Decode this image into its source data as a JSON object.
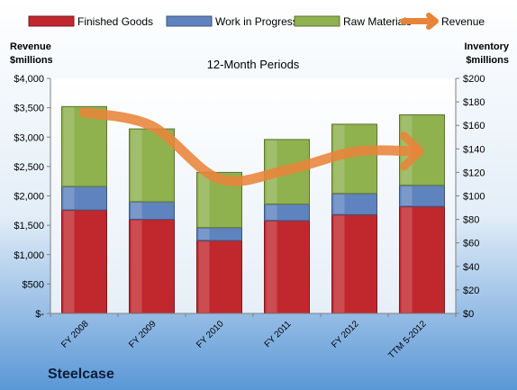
{
  "chart_data": {
    "type": "bar",
    "subtitle": "12-Month Periods",
    "company": "Steelcase",
    "ylabel_left": [
      "Revenue",
      "$millions"
    ],
    "ylabel_right": [
      "Inventory",
      "$millions"
    ],
    "categories": [
      "FY 2008",
      "FY 2009",
      "FY 2010",
      "FY 2011",
      "FY 2012",
      "TTM 5-2012"
    ],
    "left_axis": {
      "ylim": [
        0,
        4000
      ],
      "ticks": [
        0,
        500,
        1000,
        1500,
        2000,
        2500,
        3000,
        3500,
        4000
      ],
      "tick_labels": [
        "$-",
        "$500",
        "$1,000",
        "$1,500",
        "$2,000",
        "$2,500",
        "$3,000",
        "$3,500",
        "$4,000"
      ]
    },
    "right_axis": {
      "ylim": [
        0,
        200
      ],
      "ticks": [
        0,
        20,
        40,
        60,
        80,
        100,
        120,
        140,
        160,
        180,
        200
      ],
      "tick_labels": [
        "$0",
        "$20",
        "$40",
        "$60",
        "$80",
        "$100",
        "$120",
        "$140",
        "$160",
        "$180",
        "$200"
      ]
    },
    "stacked_series": [
      {
        "name": "Finished Goods",
        "axis": "right",
        "color": "#C0282E",
        "values": [
          88,
          80,
          62,
          79,
          84,
          91
        ]
      },
      {
        "name": "Work in Progress",
        "axis": "right",
        "color": "#5F83BE",
        "values": [
          20,
          15,
          11,
          14,
          18,
          18
        ]
      },
      {
        "name": "Raw Materials",
        "axis": "right",
        "color": "#8FB14E",
        "values": [
          68,
          62,
          47,
          55,
          59,
          60
        ]
      }
    ],
    "line_series": {
      "name": "Revenue",
      "axis": "left",
      "color": "#E8843A",
      "values": [
        3420,
        3190,
        2290,
        2440,
        2750,
        2760
      ]
    },
    "legend": "top",
    "grid": false
  }
}
